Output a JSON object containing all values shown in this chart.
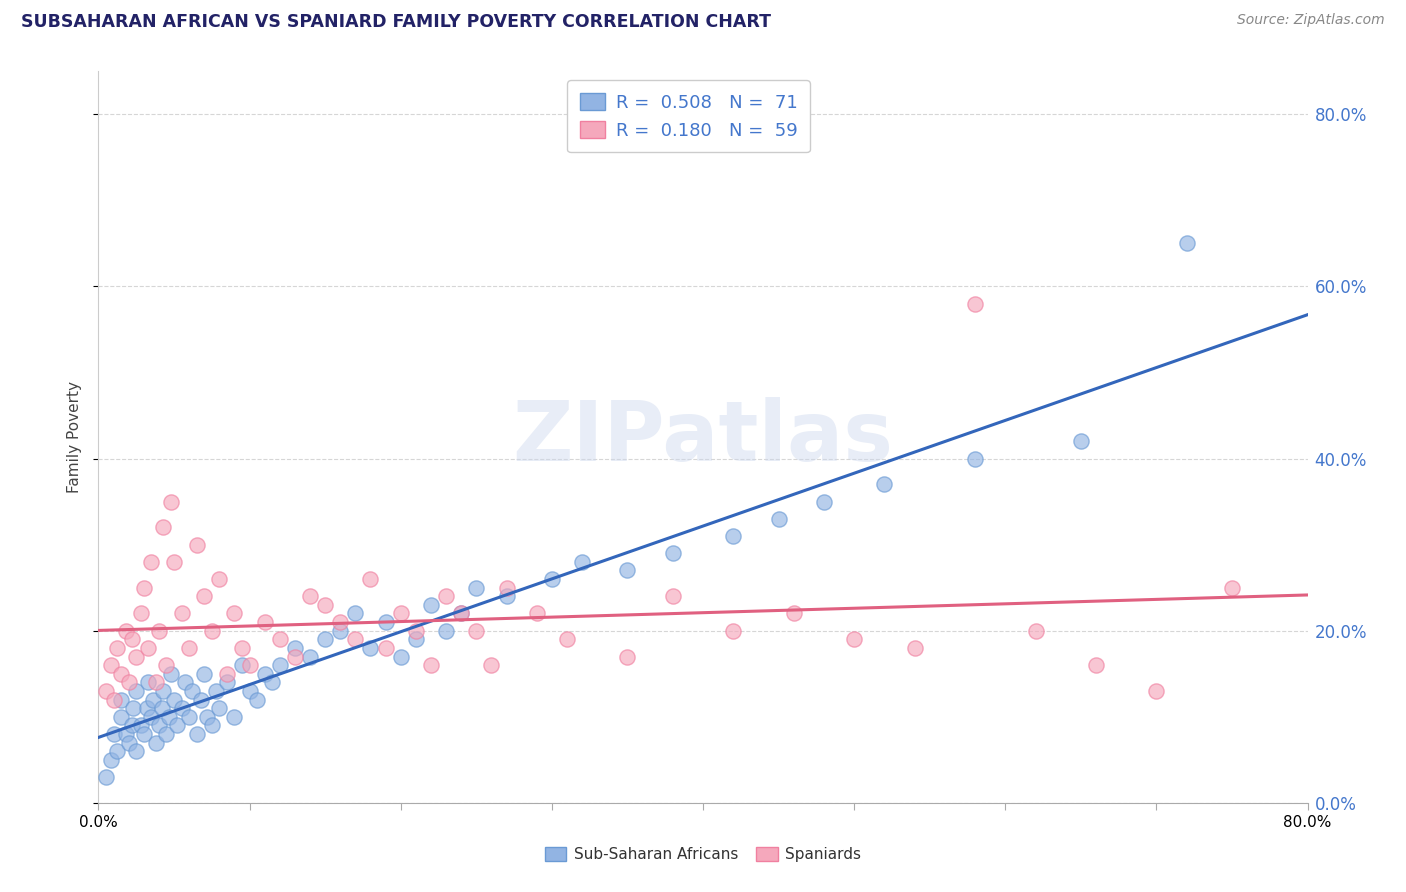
{
  "title": "SUBSAHARAN AFRICAN VS SPANIARD FAMILY POVERTY CORRELATION CHART",
  "source": "Source: ZipAtlas.com",
  "ylabel": "Family Poverty",
  "legend_bottom": [
    "Sub-Saharan Africans",
    "Spaniards"
  ],
  "r_blue": 0.508,
  "n_blue": 71,
  "r_pink": 0.18,
  "n_pink": 59,
  "blue_color": "#92B4E3",
  "pink_color": "#F5A8BC",
  "blue_edge_color": "#6A9AD4",
  "pink_edge_color": "#F080A0",
  "blue_line_color": "#3366BB",
  "pink_line_color": "#E06080",
  "watermark": "ZIPatlas",
  "xlim": [
    0.0,
    0.8
  ],
  "ylim": [
    0.0,
    0.85
  ],
  "ytick_right_color": "#4477CC",
  "blue_scatter_x": [
    0.005,
    0.008,
    0.01,
    0.012,
    0.015,
    0.015,
    0.018,
    0.02,
    0.022,
    0.023,
    0.025,
    0.025,
    0.028,
    0.03,
    0.032,
    0.033,
    0.035,
    0.036,
    0.038,
    0.04,
    0.042,
    0.043,
    0.045,
    0.047,
    0.048,
    0.05,
    0.052,
    0.055,
    0.057,
    0.06,
    0.062,
    0.065,
    0.068,
    0.07,
    0.072,
    0.075,
    0.078,
    0.08,
    0.085,
    0.09,
    0.095,
    0.1,
    0.105,
    0.11,
    0.115,
    0.12,
    0.13,
    0.14,
    0.15,
    0.16,
    0.17,
    0.18,
    0.19,
    0.2,
    0.21,
    0.22,
    0.23,
    0.24,
    0.25,
    0.27,
    0.3,
    0.32,
    0.35,
    0.38,
    0.42,
    0.45,
    0.48,
    0.52,
    0.58,
    0.65,
    0.72
  ],
  "blue_scatter_y": [
    0.03,
    0.05,
    0.08,
    0.06,
    0.1,
    0.12,
    0.08,
    0.07,
    0.09,
    0.11,
    0.06,
    0.13,
    0.09,
    0.08,
    0.11,
    0.14,
    0.1,
    0.12,
    0.07,
    0.09,
    0.11,
    0.13,
    0.08,
    0.1,
    0.15,
    0.12,
    0.09,
    0.11,
    0.14,
    0.1,
    0.13,
    0.08,
    0.12,
    0.15,
    0.1,
    0.09,
    0.13,
    0.11,
    0.14,
    0.1,
    0.16,
    0.13,
    0.12,
    0.15,
    0.14,
    0.16,
    0.18,
    0.17,
    0.19,
    0.2,
    0.22,
    0.18,
    0.21,
    0.17,
    0.19,
    0.23,
    0.2,
    0.22,
    0.25,
    0.24,
    0.26,
    0.28,
    0.27,
    0.29,
    0.31,
    0.33,
    0.35,
    0.37,
    0.4,
    0.42,
    0.65
  ],
  "pink_scatter_x": [
    0.005,
    0.008,
    0.01,
    0.012,
    0.015,
    0.018,
    0.02,
    0.022,
    0.025,
    0.028,
    0.03,
    0.033,
    0.035,
    0.038,
    0.04,
    0.043,
    0.045,
    0.048,
    0.05,
    0.055,
    0.06,
    0.065,
    0.07,
    0.075,
    0.08,
    0.085,
    0.09,
    0.095,
    0.1,
    0.11,
    0.12,
    0.13,
    0.14,
    0.15,
    0.16,
    0.17,
    0.18,
    0.19,
    0.2,
    0.21,
    0.22,
    0.23,
    0.24,
    0.25,
    0.26,
    0.27,
    0.29,
    0.31,
    0.35,
    0.38,
    0.42,
    0.46,
    0.5,
    0.54,
    0.58,
    0.62,
    0.66,
    0.7,
    0.75
  ],
  "pink_scatter_y": [
    0.13,
    0.16,
    0.12,
    0.18,
    0.15,
    0.2,
    0.14,
    0.19,
    0.17,
    0.22,
    0.25,
    0.18,
    0.28,
    0.14,
    0.2,
    0.32,
    0.16,
    0.35,
    0.28,
    0.22,
    0.18,
    0.3,
    0.24,
    0.2,
    0.26,
    0.15,
    0.22,
    0.18,
    0.16,
    0.21,
    0.19,
    0.17,
    0.24,
    0.23,
    0.21,
    0.19,
    0.26,
    0.18,
    0.22,
    0.2,
    0.16,
    0.24,
    0.22,
    0.2,
    0.16,
    0.25,
    0.22,
    0.19,
    0.17,
    0.24,
    0.2,
    0.22,
    0.19,
    0.18,
    0.58,
    0.2,
    0.16,
    0.13,
    0.25
  ]
}
